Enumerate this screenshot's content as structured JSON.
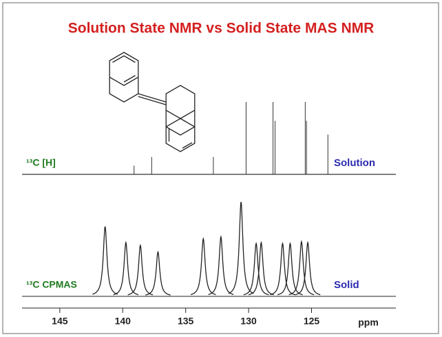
{
  "chart_data": {
    "type": "spectrum",
    "title": "Solution State NMR vs Solid State MAS NMR",
    "x_label": "ppm",
    "xlim": [
      148,
      118.3
    ],
    "xticks": [
      145,
      140,
      135,
      130,
      125
    ],
    "series": [
      {
        "name": "Solution",
        "label": "¹³C [H]",
        "style": "stick",
        "color": "#333333",
        "name_color": "#2a2ab0",
        "label_color": "#1e7a1e",
        "x": [
          139.1,
          137.7,
          132.8,
          130.2,
          128.06,
          127.9,
          125.5,
          125.4,
          123.7
        ],
        "values": [
          12,
          24,
          24,
          100,
          100,
          74,
          100,
          74,
          55
        ]
      },
      {
        "name": "Solid",
        "label": "¹³C CPMAS",
        "style": "lorentzian",
        "color": "#222222",
        "name_color": "#2a2ab0",
        "label_color": "#1e7a1e",
        "x": [
          141.4,
          139.75,
          138.6,
          137.2,
          133.6,
          132.2,
          130.6,
          129.4,
          129.0,
          127.3,
          126.7,
          125.8,
          125.3
        ],
        "values": [
          74,
          57,
          54,
          47,
          61,
          63,
          100,
          56,
          57,
          56,
          56,
          58,
          57
        ]
      }
    ]
  }
}
